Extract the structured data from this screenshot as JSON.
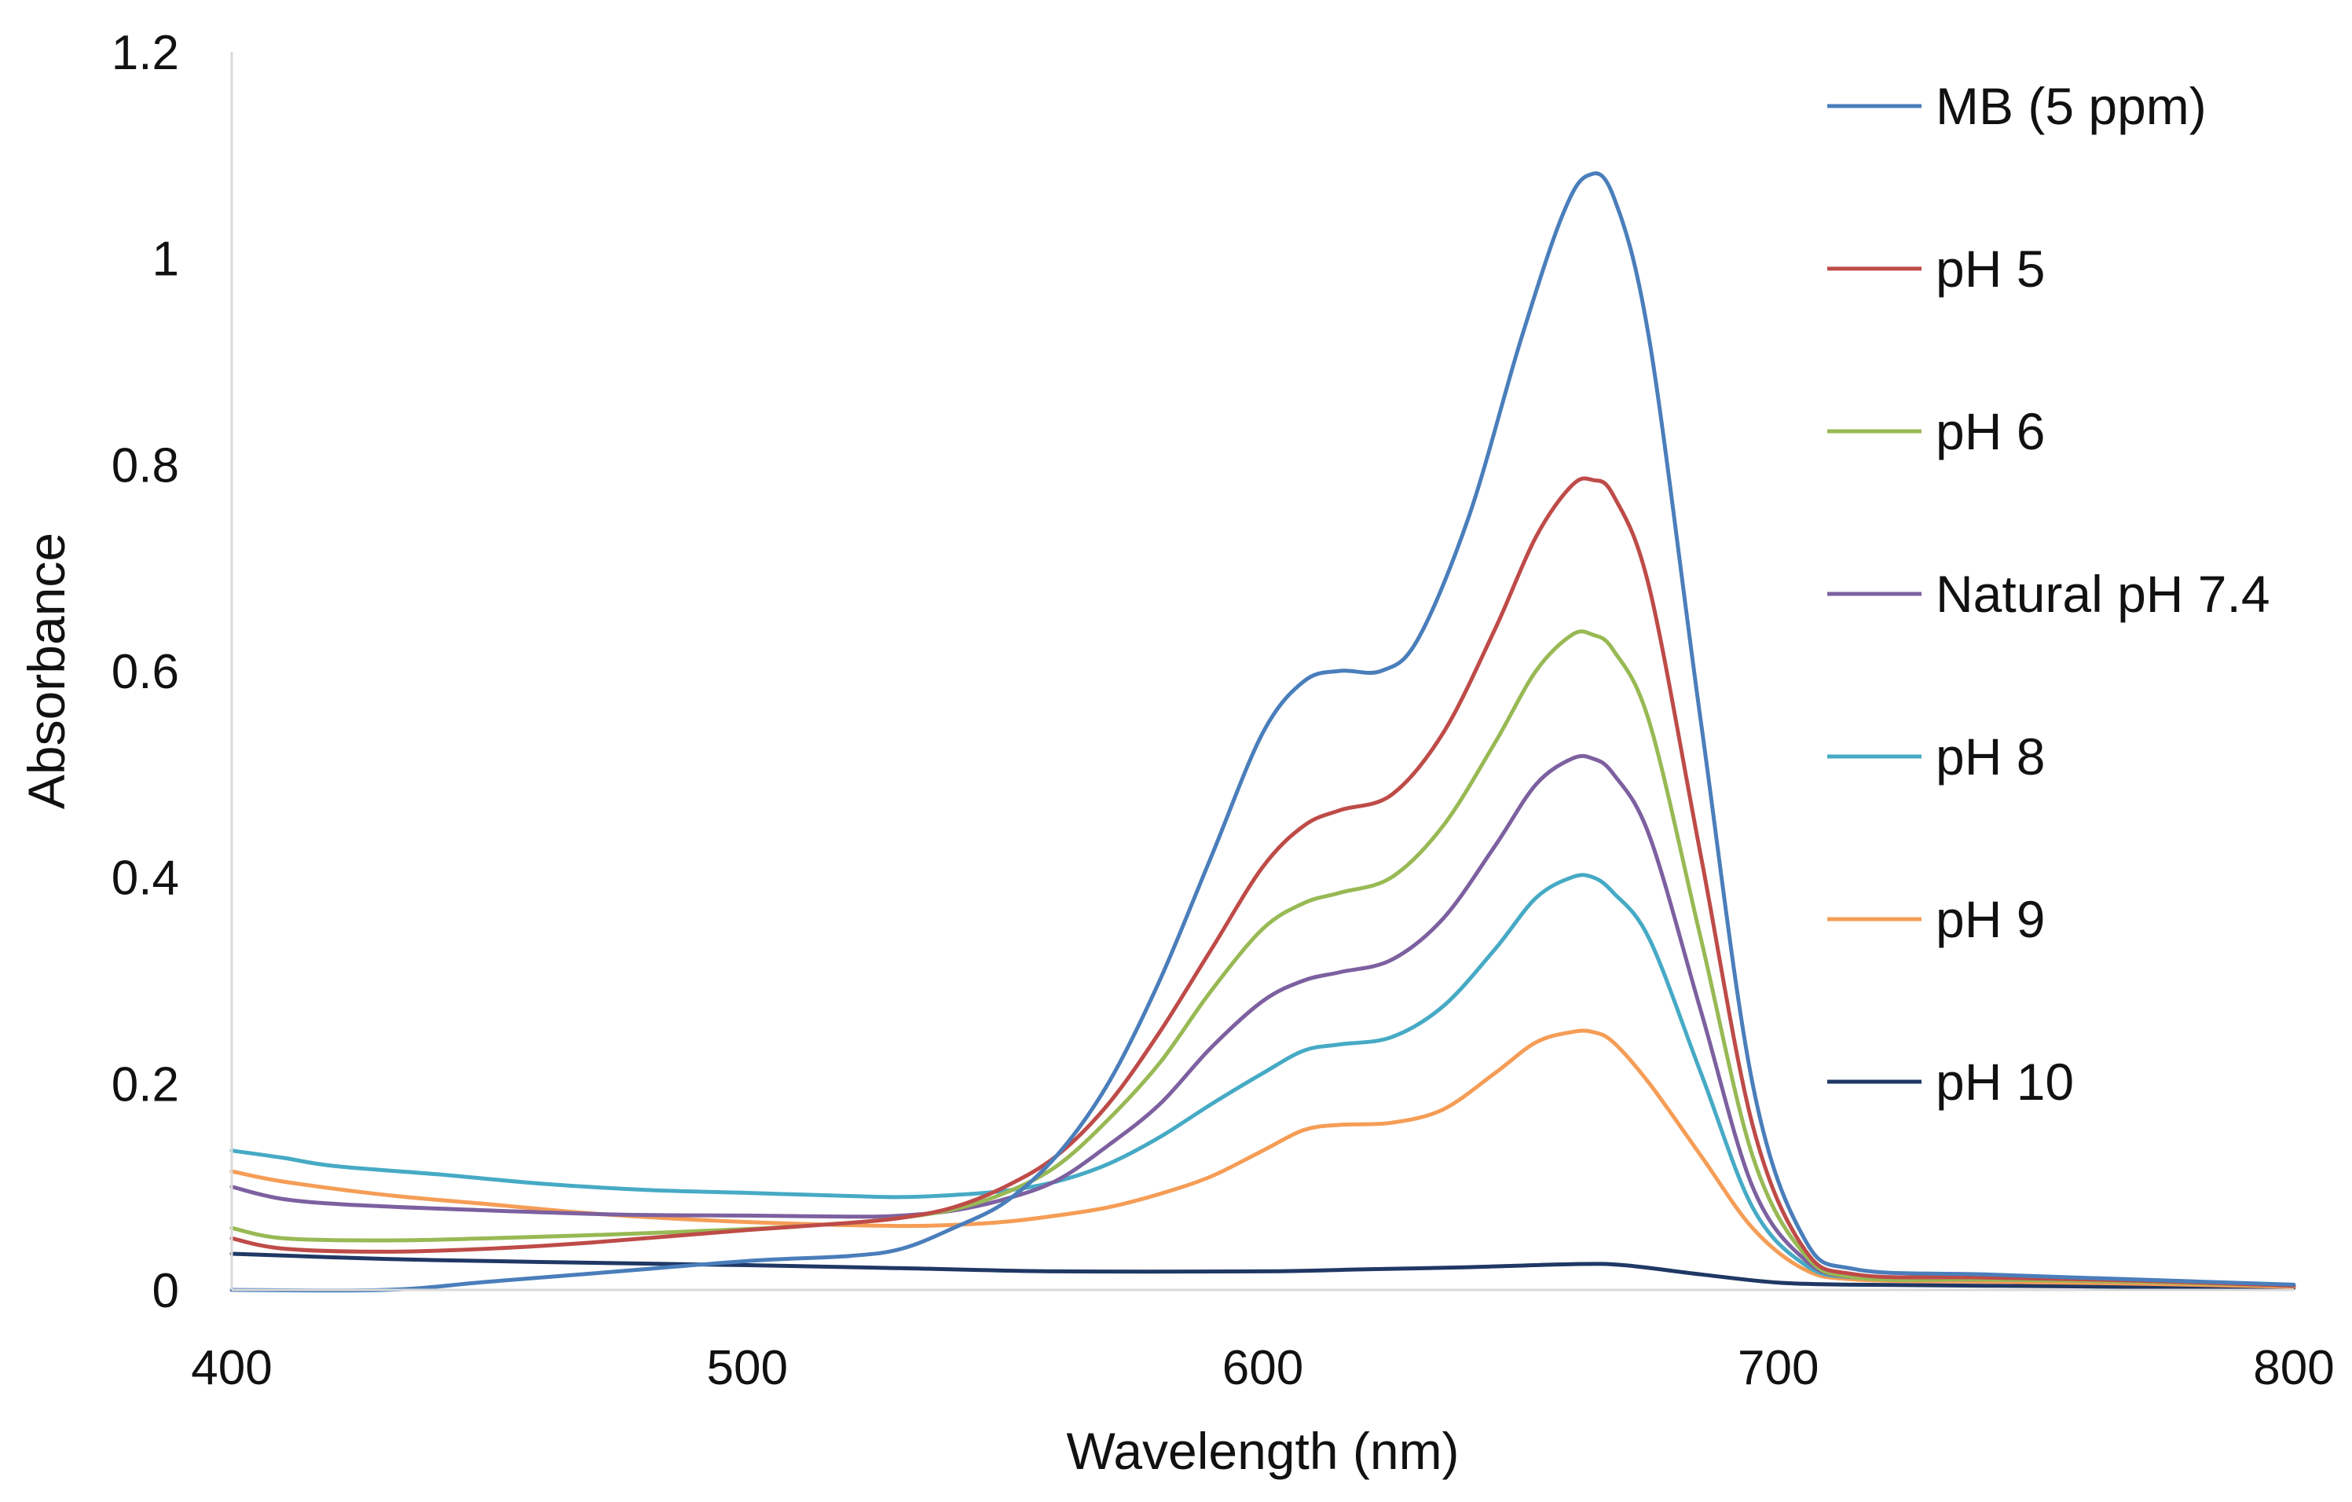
{
  "chart_data": {
    "type": "line",
    "title": "",
    "xlabel": "Wavelength (nm)",
    "ylabel": "Absorbance",
    "xlim": [
      400,
      800
    ],
    "ylim": [
      0,
      1.2
    ],
    "xticks": [
      400,
      500,
      600,
      700,
      800
    ],
    "xtick_labels": [
      "400",
      "500",
      "600",
      "700",
      "800"
    ],
    "yticks": [
      0,
      0.2,
      0.4,
      0.6,
      0.8,
      1.0,
      1.2
    ],
    "ytick_labels": [
      "0",
      "0.2",
      "0.4",
      "0.6",
      "0.8",
      "1",
      "1.2"
    ],
    "grid": false,
    "legend_position": "right",
    "series": [
      {
        "name": "MB (5 ppm)",
        "color": "#4A7EBB",
        "points": [
          [
            400,
            0.0
          ],
          [
            430,
            0.0
          ],
          [
            450,
            0.008
          ],
          [
            475,
            0.018
          ],
          [
            500,
            0.028
          ],
          [
            520,
            0.033
          ],
          [
            530,
            0.04
          ],
          [
            540,
            0.06
          ],
          [
            550,
            0.085
          ],
          [
            560,
            0.13
          ],
          [
            570,
            0.2
          ],
          [
            580,
            0.3
          ],
          [
            590,
            0.42
          ],
          [
            600,
            0.54
          ],
          [
            608,
            0.59
          ],
          [
            615,
            0.6
          ],
          [
            623,
            0.6
          ],
          [
            630,
            0.63
          ],
          [
            640,
            0.75
          ],
          [
            650,
            0.92
          ],
          [
            658,
            1.04
          ],
          [
            663,
            1.08
          ],
          [
            668,
            1.06
          ],
          [
            675,
            0.92
          ],
          [
            685,
            0.55
          ],
          [
            695,
            0.2
          ],
          [
            705,
            0.05
          ],
          [
            715,
            0.02
          ],
          [
            740,
            0.015
          ],
          [
            770,
            0.01
          ],
          [
            800,
            0.005
          ]
        ]
      },
      {
        "name": "pH 5",
        "color": "#BE4B48",
        "points": [
          [
            400,
            0.05
          ],
          [
            410,
            0.04
          ],
          [
            430,
            0.037
          ],
          [
            450,
            0.04
          ],
          [
            470,
            0.046
          ],
          [
            500,
            0.058
          ],
          [
            520,
            0.065
          ],
          [
            530,
            0.07
          ],
          [
            540,
            0.08
          ],
          [
            550,
            0.1
          ],
          [
            560,
            0.13
          ],
          [
            570,
            0.18
          ],
          [
            580,
            0.25
          ],
          [
            590,
            0.33
          ],
          [
            600,
            0.41
          ],
          [
            608,
            0.45
          ],
          [
            615,
            0.465
          ],
          [
            625,
            0.48
          ],
          [
            635,
            0.54
          ],
          [
            645,
            0.64
          ],
          [
            653,
            0.73
          ],
          [
            660,
            0.78
          ],
          [
            664,
            0.785
          ],
          [
            668,
            0.77
          ],
          [
            675,
            0.68
          ],
          [
            685,
            0.42
          ],
          [
            695,
            0.16
          ],
          [
            705,
            0.04
          ],
          [
            715,
            0.015
          ],
          [
            740,
            0.012
          ],
          [
            770,
            0.009
          ],
          [
            800,
            0.004
          ]
        ]
      },
      {
        "name": "pH 6",
        "color": "#98B954",
        "points": [
          [
            400,
            0.06
          ],
          [
            410,
            0.05
          ],
          [
            430,
            0.048
          ],
          [
            450,
            0.05
          ],
          [
            475,
            0.054
          ],
          [
            500,
            0.059
          ],
          [
            520,
            0.065
          ],
          [
            530,
            0.07
          ],
          [
            540,
            0.078
          ],
          [
            550,
            0.094
          ],
          [
            560,
            0.12
          ],
          [
            570,
            0.165
          ],
          [
            580,
            0.22
          ],
          [
            590,
            0.29
          ],
          [
            600,
            0.35
          ],
          [
            608,
            0.375
          ],
          [
            615,
            0.385
          ],
          [
            625,
            0.4
          ],
          [
            635,
            0.45
          ],
          [
            645,
            0.53
          ],
          [
            653,
            0.6
          ],
          [
            660,
            0.635
          ],
          [
            664,
            0.635
          ],
          [
            668,
            0.62
          ],
          [
            675,
            0.55
          ],
          [
            685,
            0.34
          ],
          [
            695,
            0.13
          ],
          [
            705,
            0.035
          ],
          [
            715,
            0.012
          ],
          [
            740,
            0.01
          ],
          [
            770,
            0.008
          ],
          [
            800,
            0.004
          ]
        ]
      },
      {
        "name": "Natural pH 7.4",
        "color": "#7D60A0",
        "points": [
          [
            400,
            0.1
          ],
          [
            410,
            0.088
          ],
          [
            425,
            0.082
          ],
          [
            450,
            0.077
          ],
          [
            475,
            0.073
          ],
          [
            500,
            0.072
          ],
          [
            520,
            0.071
          ],
          [
            530,
            0.072
          ],
          [
            540,
            0.077
          ],
          [
            550,
            0.088
          ],
          [
            560,
            0.106
          ],
          [
            570,
            0.14
          ],
          [
            580,
            0.18
          ],
          [
            590,
            0.235
          ],
          [
            600,
            0.28
          ],
          [
            608,
            0.3
          ],
          [
            615,
            0.308
          ],
          [
            625,
            0.32
          ],
          [
            635,
            0.36
          ],
          [
            645,
            0.43
          ],
          [
            653,
            0.49
          ],
          [
            660,
            0.515
          ],
          [
            664,
            0.515
          ],
          [
            668,
            0.5
          ],
          [
            675,
            0.44
          ],
          [
            685,
            0.27
          ],
          [
            695,
            0.1
          ],
          [
            705,
            0.03
          ],
          [
            715,
            0.012
          ],
          [
            740,
            0.01
          ],
          [
            770,
            0.008
          ],
          [
            800,
            0.004
          ]
        ]
      },
      {
        "name": "pH 8",
        "color": "#46AAC5",
        "points": [
          [
            400,
            0.135
          ],
          [
            410,
            0.128
          ],
          [
            420,
            0.12
          ],
          [
            440,
            0.112
          ],
          [
            460,
            0.103
          ],
          [
            480,
            0.097
          ],
          [
            500,
            0.094
          ],
          [
            520,
            0.091
          ],
          [
            530,
            0.09
          ],
          [
            540,
            0.092
          ],
          [
            550,
            0.096
          ],
          [
            560,
            0.105
          ],
          [
            570,
            0.122
          ],
          [
            580,
            0.148
          ],
          [
            590,
            0.18
          ],
          [
            600,
            0.21
          ],
          [
            608,
            0.232
          ],
          [
            615,
            0.238
          ],
          [
            625,
            0.245
          ],
          [
            635,
            0.275
          ],
          [
            645,
            0.33
          ],
          [
            653,
            0.38
          ],
          [
            660,
            0.4
          ],
          [
            664,
            0.4
          ],
          [
            668,
            0.385
          ],
          [
            675,
            0.34
          ],
          [
            685,
            0.21
          ],
          [
            695,
            0.08
          ],
          [
            705,
            0.025
          ],
          [
            715,
            0.012
          ],
          [
            740,
            0.012
          ],
          [
            770,
            0.009
          ],
          [
            800,
            0.004
          ]
        ]
      },
      {
        "name": "pH 9",
        "color": "#F59D56",
        "points": [
          [
            400,
            0.115
          ],
          [
            410,
            0.105
          ],
          [
            430,
            0.092
          ],
          [
            450,
            0.083
          ],
          [
            470,
            0.074
          ],
          [
            490,
            0.068
          ],
          [
            510,
            0.064
          ],
          [
            530,
            0.062
          ],
          [
            540,
            0.063
          ],
          [
            550,
            0.066
          ],
          [
            560,
            0.072
          ],
          [
            570,
            0.08
          ],
          [
            580,
            0.093
          ],
          [
            590,
            0.11
          ],
          [
            600,
            0.135
          ],
          [
            608,
            0.155
          ],
          [
            615,
            0.16
          ],
          [
            625,
            0.162
          ],
          [
            635,
            0.175
          ],
          [
            645,
            0.21
          ],
          [
            653,
            0.24
          ],
          [
            660,
            0.25
          ],
          [
            664,
            0.25
          ],
          [
            668,
            0.24
          ],
          [
            675,
            0.2
          ],
          [
            685,
            0.13
          ],
          [
            695,
            0.06
          ],
          [
            705,
            0.02
          ],
          [
            715,
            0.01
          ],
          [
            740,
            0.008
          ],
          [
            770,
            0.006
          ],
          [
            800,
            0.003
          ]
        ]
      },
      {
        "name": "pH 10",
        "color": "#1F3864",
        "points": [
          [
            400,
            0.035
          ],
          [
            430,
            0.03
          ],
          [
            460,
            0.027
          ],
          [
            500,
            0.024
          ],
          [
            530,
            0.021
          ],
          [
            560,
            0.018
          ],
          [
            600,
            0.018
          ],
          [
            620,
            0.02
          ],
          [
            640,
            0.022
          ],
          [
            660,
            0.025
          ],
          [
            670,
            0.024
          ],
          [
            685,
            0.015
          ],
          [
            700,
            0.007
          ],
          [
            715,
            0.005
          ],
          [
            740,
            0.004
          ],
          [
            770,
            0.003
          ],
          [
            800,
            0.002
          ]
        ]
      }
    ]
  }
}
